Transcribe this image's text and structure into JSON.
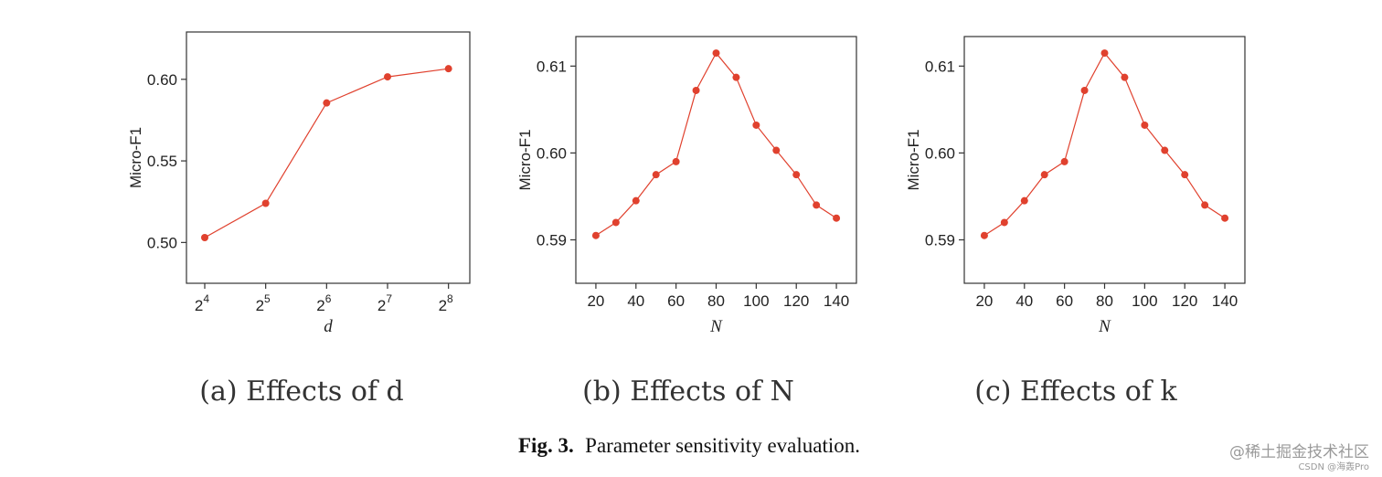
{
  "chart_data": [
    {
      "type": "line",
      "ylabel": "Micro-F1",
      "xlabel": "d",
      "x_ticks": [
        {
          "base": "2",
          "exp": "4"
        },
        {
          "base": "2",
          "exp": "5"
        },
        {
          "base": "2",
          "exp": "6"
        },
        {
          "base": "2",
          "exp": "7"
        },
        {
          "base": "2",
          "exp": "8"
        }
      ],
      "x": [
        4,
        5,
        6,
        7,
        8
      ],
      "values": [
        0.503,
        0.524,
        0.5855,
        0.6015,
        0.6065
      ],
      "xlim": [
        3.7,
        8.35
      ],
      "ylim": [
        0.475,
        0.629
      ],
      "yticks": [
        "0.50",
        "0.55",
        "0.60"
      ],
      "caption": "(a) Effects of d",
      "color": "#e0412e"
    },
    {
      "type": "line",
      "ylabel": "Micro-F1",
      "xlabel": "N",
      "x_ticks": [
        "20",
        "40",
        "60",
        "80",
        "100",
        "120",
        "140"
      ],
      "x": [
        20,
        30,
        40,
        50,
        60,
        70,
        80,
        90,
        100,
        110,
        120,
        130,
        140
      ],
      "values": [
        0.5905,
        0.592,
        0.5945,
        0.5975,
        0.599,
        0.6072,
        0.6115,
        0.6087,
        0.6032,
        0.6003,
        0.5975,
        0.594,
        0.5925
      ],
      "xlim": [
        10,
        150
      ],
      "ylim": [
        0.585,
        0.6134
      ],
      "yticks": [
        "0.59",
        "0.60",
        "0.61"
      ],
      "caption": "(b) Effects of N",
      "color": "#e0412e"
    },
    {
      "type": "line",
      "ylabel": "Micro-F1",
      "xlabel": "N",
      "x_ticks": [
        "20",
        "40",
        "60",
        "80",
        "100",
        "120",
        "140"
      ],
      "x": [
        20,
        30,
        40,
        50,
        60,
        70,
        80,
        90,
        100,
        110,
        120,
        130,
        140
      ],
      "values": [
        0.5905,
        0.592,
        0.5945,
        0.5975,
        0.599,
        0.6072,
        0.6115,
        0.6087,
        0.6032,
        0.6003,
        0.5975,
        0.594,
        0.5925
      ],
      "xlim": [
        10,
        150
      ],
      "ylim": [
        0.585,
        0.6134
      ],
      "yticks": [
        "0.59",
        "0.60",
        "0.61"
      ],
      "caption": "(c) Effects of k",
      "color": "#e0412e"
    }
  ],
  "figure_caption": {
    "label": "Fig. 3.",
    "text": "Parameter sensitivity evaluation."
  },
  "watermark": {
    "main": "@稀土掘金技术社区",
    "sub": "CSDN @海轰Pro"
  }
}
